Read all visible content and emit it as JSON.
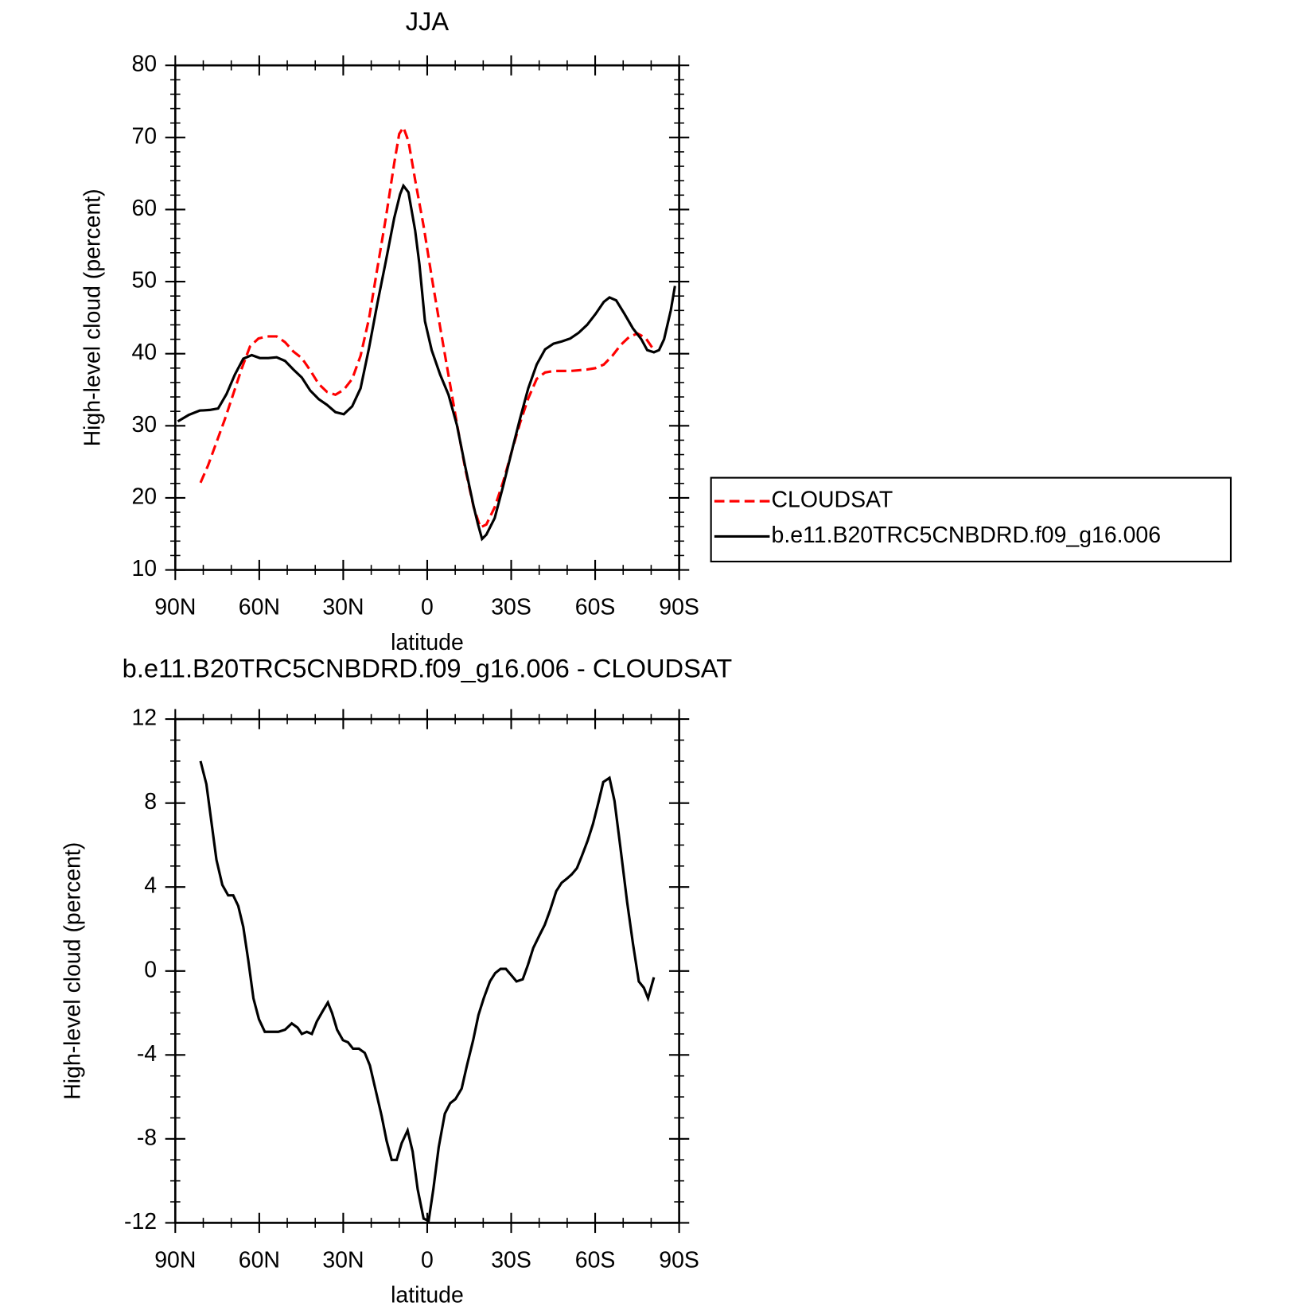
{
  "chart_data": [
    {
      "type": "line",
      "title": "JJA",
      "xlabel": "latitude",
      "ylabel": "High-level cloud (percent)",
      "xlim": [
        90,
        -90
      ],
      "xticks": [
        {
          "value": 90,
          "label": "90N"
        },
        {
          "value": 60,
          "label": "60N"
        },
        {
          "value": 30,
          "label": "30N"
        },
        0,
        {
          "value": -30,
          "label": "30S"
        },
        {
          "value": -60,
          "label": "60S"
        },
        {
          "value": -90,
          "label": "90S"
        }
      ],
      "ylim": [
        10,
        80
      ],
      "yticks": [
        10,
        20,
        30,
        40,
        50,
        60,
        70,
        80
      ],
      "legend": "right",
      "series": [
        {
          "name": "CLOUDSAT",
          "color": "#ff0000",
          "dashed": true,
          "x": [
            81.0,
            78.3,
            75.3,
            72.3,
            69.3,
            66.3,
            63.3,
            60.3,
            57.4,
            53.8,
            50.8,
            47.8,
            44.8,
            41.8,
            38.8,
            35.8,
            32.8,
            29.8,
            26.8,
            23.8,
            20.8,
            17.8,
            14.8,
            11.8,
            10.0,
            8.5,
            6.7,
            4.3,
            1.3,
            -1.6,
            -4.6,
            -7.6,
            -10.6,
            -13.6,
            -16.6,
            -19.0,
            -21.1,
            -24.1,
            -27.1,
            -30.1,
            -33.1,
            -36.1,
            -39.1,
            -42.1,
            -45.1,
            -48.1,
            -51.1,
            -54.1,
            -57.1,
            -60.1,
            -63.1,
            -66.1,
            -69.1,
            -72.1,
            -75.1,
            -78.0,
            -81.0
          ],
          "values": [
            22.1,
            24.5,
            27.7,
            30.9,
            34.4,
            37.9,
            41.0,
            42.1,
            42.4,
            42.4,
            41.6,
            40.3,
            39.4,
            37.7,
            35.8,
            34.7,
            34.3,
            35.0,
            36.5,
            39.7,
            44.9,
            51.9,
            58.8,
            66.4,
            70.5,
            71.4,
            69.5,
            64.1,
            57.7,
            50.7,
            43.7,
            37.0,
            30.3,
            24.0,
            18.7,
            15.9,
            16.3,
            18.7,
            22.2,
            26.3,
            30.3,
            33.8,
            36.5,
            37.4,
            37.6,
            37.6,
            37.6,
            37.7,
            37.8,
            38.0,
            38.5,
            39.7,
            41.2,
            42.3,
            42.8,
            42.2,
            40.5
          ]
        },
        {
          "name": "b.e11.B20TRC5CNBDRD.f09_g16.006",
          "color": "#000000",
          "dashed": false,
          "x": [
            89.1,
            85.2,
            81.3,
            77.7,
            74.7,
            71.7,
            68.7,
            65.7,
            62.7,
            59.8,
            56.8,
            53.8,
            50.8,
            47.8,
            44.8,
            41.8,
            38.8,
            35.8,
            32.8,
            29.8,
            26.8,
            23.8,
            20.8,
            17.8,
            14.8,
            11.8,
            9.7,
            8.5,
            6.7,
            4.3,
            2.8,
            0.8,
            -1.6,
            -4.6,
            -7.6,
            -10.6,
            -13.6,
            -16.6,
            -18.1,
            -19.6,
            -21.1,
            -24.1,
            -27.1,
            -30.1,
            -33.1,
            -36.1,
            -39.1,
            -42.1,
            -45.1,
            -48.1,
            -51.1,
            -54.1,
            -57.1,
            -60.1,
            -63.1,
            -65.1,
            -67.5,
            -70.5,
            -73.5,
            -76.5,
            -78.6,
            -81.0,
            -82.8,
            -84.6,
            -87.0,
            -88.5
          ],
          "values": [
            30.6,
            31.5,
            32.1,
            32.2,
            32.4,
            34.4,
            37.1,
            39.3,
            39.8,
            39.4,
            39.4,
            39.5,
            39.0,
            37.8,
            36.7,
            34.9,
            33.7,
            32.9,
            31.9,
            31.6,
            32.7,
            35.2,
            40.8,
            47.0,
            52.8,
            58.8,
            62.1,
            63.3,
            62.4,
            57.1,
            52.4,
            44.5,
            40.5,
            37.1,
            34.3,
            30.1,
            24.3,
            18.8,
            16.4,
            14.3,
            14.9,
            17.2,
            21.6,
            26.3,
            30.9,
            35.2,
            38.5,
            40.6,
            41.4,
            41.7,
            42.1,
            42.9,
            44.0,
            45.5,
            47.2,
            47.8,
            47.4,
            45.5,
            43.5,
            42.0,
            40.5,
            40.2,
            40.5,
            42.0,
            46.0,
            49.4
          ]
        }
      ]
    },
    {
      "type": "line",
      "title": "b.e11.B20TRC5CNBDRD.f09_g16.006 - CLOUDSAT",
      "xlabel": "latitude",
      "ylabel": "High-level cloud (percent)",
      "xlim": [
        90,
        -90
      ],
      "xticks": [
        {
          "value": 90,
          "label": "90N"
        },
        {
          "value": 60,
          "label": "60N"
        },
        {
          "value": 30,
          "label": "30N"
        },
        0,
        {
          "value": -30,
          "label": "30S"
        },
        {
          "value": -60,
          "label": "60S"
        },
        {
          "value": -90,
          "label": "90S"
        }
      ],
      "ylim": [
        -12,
        12
      ],
      "yticks": [
        -12,
        -8,
        -4,
        0,
        4,
        8,
        12
      ],
      "series": [
        {
          "color": "#000000",
          "dashed": false,
          "x": [
            81.0,
            78.9,
            75.3,
            73.2,
            71.1,
            69.3,
            67.5,
            65.7,
            63.9,
            62.1,
            60.1,
            58.0,
            55.3,
            53.2,
            50.8,
            48.4,
            46.3,
            44.8,
            43.0,
            41.2,
            39.4,
            37.3,
            35.5,
            34.0,
            32.2,
            30.1,
            28.3,
            26.5,
            24.4,
            22.3,
            20.5,
            18.4,
            16.3,
            14.5,
            12.7,
            10.9,
            9.1,
            7.0,
            5.2,
            3.4,
            1.3,
            -0.5,
            -2.2,
            -4.1,
            -6.3,
            -8.2,
            -10.1,
            -12.3,
            -14.2,
            -16.4,
            -18.3,
            -20.2,
            -22.4,
            -24.3,
            -26.2,
            -28.1,
            -30.0,
            -31.9,
            -34.1,
            -36.0,
            -37.9,
            -40.1,
            -42.0,
            -43.9,
            -46.1,
            -48.0,
            -49.9,
            -51.6,
            -53.5,
            -55.3,
            -57.3,
            -59.2,
            -61.1,
            -62.9,
            -65.1,
            -66.9,
            -69.0,
            -71.4,
            -73.5,
            -75.6,
            -77.4,
            -78.9,
            -81.0
          ],
          "values": [
            10.0,
            8.9,
            5.3,
            4.1,
            3.6,
            3.6,
            3.1,
            2.1,
            0.5,
            -1.3,
            -2.3,
            -2.9,
            -2.9,
            -2.9,
            -2.8,
            -2.5,
            -2.7,
            -3.0,
            -2.9,
            -3.0,
            -2.4,
            -1.9,
            -1.5,
            -2.0,
            -2.8,
            -3.3,
            -3.4,
            -3.7,
            -3.7,
            -3.9,
            -4.5,
            -5.7,
            -6.9,
            -8.1,
            -9.0,
            -9.0,
            -8.2,
            -7.6,
            -8.6,
            -10.4,
            -11.8,
            -11.9,
            -10.4,
            -8.4,
            -6.8,
            -6.3,
            -6.1,
            -5.6,
            -4.5,
            -3.3,
            -2.1,
            -1.3,
            -0.5,
            -0.1,
            0.1,
            0.1,
            -0.2,
            -0.5,
            -0.4,
            0.3,
            1.1,
            1.7,
            2.2,
            2.9,
            3.8,
            4.2,
            4.4,
            4.6,
            4.9,
            5.5,
            6.2,
            7.0,
            8.0,
            9.0,
            9.2,
            8.1,
            5.9,
            3.3,
            1.3,
            -0.5,
            -0.8,
            -1.3,
            -0.3
          ]
        }
      ]
    }
  ]
}
